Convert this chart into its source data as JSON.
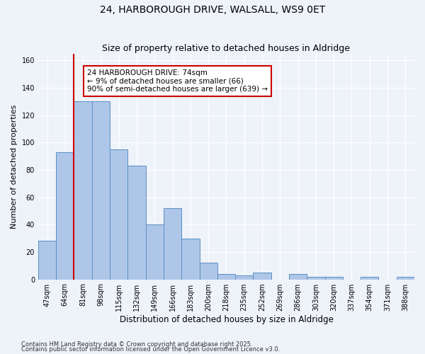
{
  "title": "24, HARBOROUGH DRIVE, WALSALL, WS9 0ET",
  "subtitle": "Size of property relative to detached houses in Aldridge",
  "xlabel": "Distribution of detached houses by size in Aldridge",
  "ylabel": "Number of detached properties",
  "categories": [
    "47sqm",
    "64sqm",
    "81sqm",
    "98sqm",
    "115sqm",
    "132sqm",
    "149sqm",
    "166sqm",
    "183sqm",
    "200sqm",
    "218sqm",
    "235sqm",
    "252sqm",
    "269sqm",
    "286sqm",
    "303sqm",
    "320sqm",
    "337sqm",
    "354sqm",
    "371sqm",
    "388sqm"
  ],
  "values": [
    28,
    93,
    130,
    130,
    95,
    83,
    40,
    52,
    30,
    12,
    4,
    3,
    5,
    0,
    4,
    2,
    2,
    0,
    2,
    0,
    2
  ],
  "bar_color": "#aec6e8",
  "bar_edge_color": "#5a8fc2",
  "vline_x": 1.5,
  "vline_color": "#cc0000",
  "annotation_text": "24 HARBOROUGH DRIVE: 74sqm\n← 9% of detached houses are smaller (66)\n90% of semi-detached houses are larger (639) →",
  "annotation_box_color": "#ffffff",
  "annotation_box_edge": "#cc0000",
  "ylim": [
    0,
    165
  ],
  "yticks": [
    0,
    20,
    40,
    60,
    80,
    100,
    120,
    140,
    160
  ],
  "footer1": "Contains HM Land Registry data © Crown copyright and database right 2025.",
  "footer2": "Contains public sector information licensed under the Open Government Licence v3.0.",
  "bg_color": "#eef2f9",
  "grid_color": "#ffffff",
  "title_fontsize": 10,
  "subtitle_fontsize": 9,
  "tick_fontsize": 7,
  "ylabel_fontsize": 8,
  "xlabel_fontsize": 8.5,
  "annot_fontsize": 7.5
}
